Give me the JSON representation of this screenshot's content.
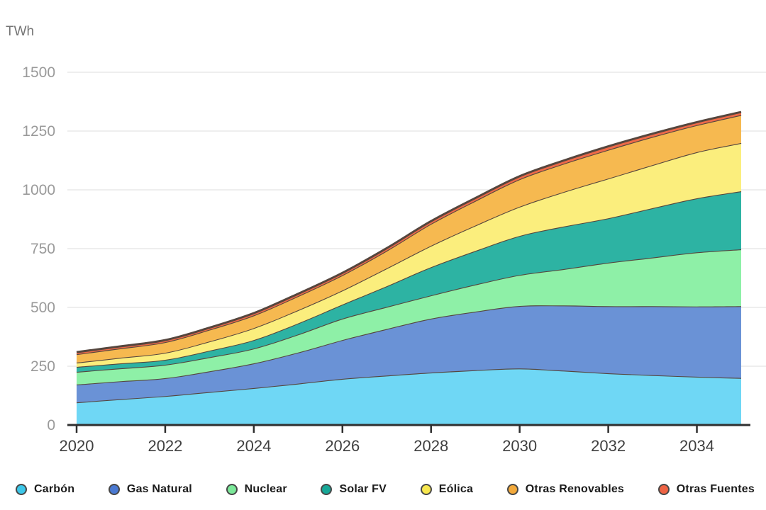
{
  "page": {
    "background": "#ffffff"
  },
  "chart_data": {
    "type": "area",
    "stacked": true,
    "title": "",
    "ylabel": "TWh",
    "xlabel": "",
    "x": [
      2020,
      2021,
      2022,
      2023,
      2024,
      2025,
      2026,
      2027,
      2028,
      2029,
      2030,
      2031,
      2032,
      2033,
      2034,
      2035
    ],
    "x_ticks": [
      2020,
      2022,
      2024,
      2026,
      2028,
      2030,
      2032,
      2034
    ],
    "y_ticks": [
      0,
      250,
      500,
      750,
      1000,
      1250,
      1500
    ],
    "xlim": [
      2020,
      2035
    ],
    "ylim": [
      0,
      1500
    ],
    "grid": true,
    "legend_position": "bottom",
    "axis_color": "#2f2f2f",
    "grid_color": "#e8e8e8",
    "x_tick_color": "#3f3f3f",
    "y_tick_color": "#9a9a9a",
    "outline_color": "#55463e",
    "series": [
      {
        "id": "carbon",
        "name": "Carbón",
        "color": "#6fd7f5",
        "legend_color": "#3cc7e9",
        "values": [
          96,
          110,
          123,
          140,
          157,
          176,
          196,
          210,
          223,
          233,
          240,
          231,
          220,
          212,
          205,
          200
        ]
      },
      {
        "id": "gas-natural",
        "name": "Gas Natural",
        "color": "#6a92d6",
        "legend_color": "#4a79d2",
        "values": [
          76,
          76,
          76,
          88,
          105,
          132,
          165,
          198,
          229,
          249,
          266,
          277,
          285,
          293,
          299,
          305
        ]
      },
      {
        "id": "nuclear",
        "name": "Nuclear",
        "color": "#8ef0a7",
        "legend_color": "#7be899",
        "values": [
          54,
          55,
          57,
          60,
          63,
          77,
          91,
          94,
          99,
          115,
          132,
          155,
          185,
          207,
          230,
          242
        ]
      },
      {
        "id": "solar-fv",
        "name": "Solar FV",
        "color": "#2db3a3",
        "legend_color": "#17a797",
        "values": [
          21,
          21,
          21,
          28,
          36,
          47,
          60,
          88,
          120,
          143,
          166,
          181,
          189,
          210,
          230,
          247
        ]
      },
      {
        "id": "eolica",
        "name": "Eólica",
        "color": "#fbee7d",
        "legend_color": "#f7e74e",
        "values": [
          18,
          24,
          30,
          39,
          51,
          56,
          60,
          76,
          91,
          108,
          124,
          147,
          169,
          183,
          196,
          205
        ]
      },
      {
        "id": "otras-renovables",
        "name": "Otras Renovables",
        "color": "#f6b950",
        "legend_color": "#f2a93b",
        "values": [
          36,
          40,
          45,
          50,
          54,
          60,
          65,
          75,
          93,
          105,
          117,
          120,
          122,
          120,
          115,
          119
        ]
      },
      {
        "id": "otras-fuentes",
        "name": "Otras Fuentes",
        "color": "#ee6a48",
        "legend_color": "#ee6344",
        "values": [
          9,
          9,
          9,
          9,
          10,
          10,
          10,
          11,
          12,
          12,
          13,
          14,
          15,
          14,
          13,
          13
        ]
      }
    ]
  }
}
